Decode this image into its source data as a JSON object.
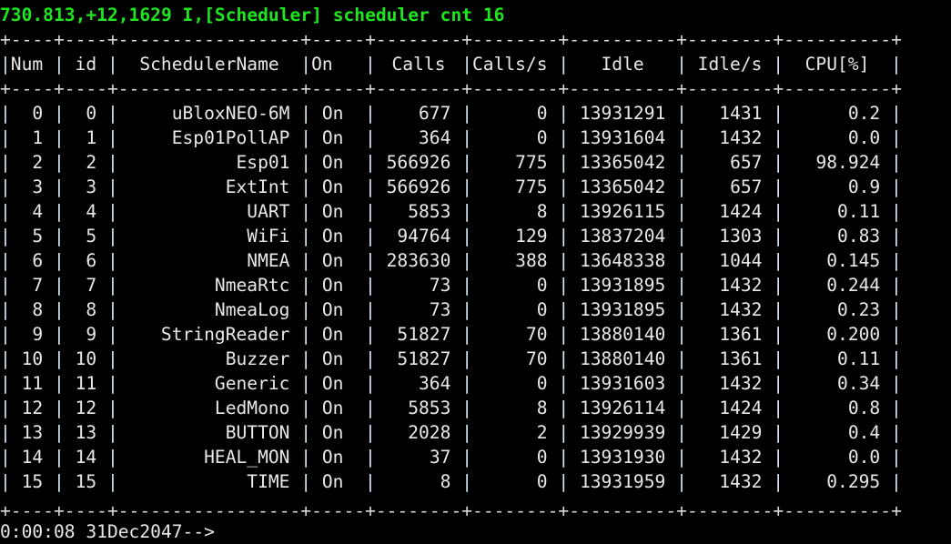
{
  "terminal": {
    "log_line": "730.813,+12,1629 I,[Scheduler] scheduler cnt 16",
    "prompt": "0:00:08 31Dec2047-->",
    "colors": {
      "log_line": "#1ee61e",
      "text": "#e8e8e8",
      "background": "#000000"
    }
  },
  "table": {
    "headers": [
      "Num",
      "id",
      "SchedulerName",
      "On",
      "Calls",
      "Calls/s",
      "Idle",
      "Idle/s",
      "CPU[%]"
    ],
    "rows": [
      [
        "0",
        "0",
        "uBloxNEO-6M",
        "On",
        "677",
        "0",
        "13931291",
        "1431",
        "0.2"
      ],
      [
        "1",
        "1",
        "Esp01PollAP",
        "On",
        "364",
        "0",
        "13931604",
        "1432",
        "0.0"
      ],
      [
        "2",
        "2",
        "Esp01",
        "On",
        "566926",
        "775",
        "13365042",
        "657",
        "98.924"
      ],
      [
        "3",
        "3",
        "ExtInt",
        "On",
        "566926",
        "775",
        "13365042",
        "657",
        "0.9"
      ],
      [
        "4",
        "4",
        "UART",
        "On",
        "5853",
        "8",
        "13926115",
        "1424",
        "0.11"
      ],
      [
        "5",
        "5",
        "WiFi",
        "On",
        "94764",
        "129",
        "13837204",
        "1303",
        "0.83"
      ],
      [
        "6",
        "6",
        "NMEA",
        "On",
        "283630",
        "388",
        "13648338",
        "1044",
        "0.145"
      ],
      [
        "7",
        "7",
        "NmeaRtc",
        "On",
        "73",
        "0",
        "13931895",
        "1432",
        "0.244"
      ],
      [
        "8",
        "8",
        "NmeaLog",
        "On",
        "73",
        "0",
        "13931895",
        "1432",
        "0.23"
      ],
      [
        "9",
        "9",
        "StringReader",
        "On",
        "51827",
        "70",
        "13880140",
        "1361",
        "0.200"
      ],
      [
        "10",
        "10",
        "Buzzer",
        "On",
        "51827",
        "70",
        "13880140",
        "1361",
        "0.11"
      ],
      [
        "11",
        "11",
        "Generic",
        "On",
        "364",
        "0",
        "13931603",
        "1432",
        "0.34"
      ],
      [
        "12",
        "12",
        "LedMono",
        "On",
        "5853",
        "8",
        "13926114",
        "1424",
        "0.8"
      ],
      [
        "13",
        "13",
        "BUTTON",
        "On",
        "2028",
        "2",
        "13929939",
        "1429",
        "0.4"
      ],
      [
        "14",
        "14",
        "HEAL_MON",
        "On",
        "37",
        "0",
        "13931930",
        "1432",
        "0.0"
      ],
      [
        "15",
        "15",
        "TIME",
        "On",
        "8",
        "0",
        "13931959",
        "1432",
        "0.295"
      ]
    ]
  }
}
